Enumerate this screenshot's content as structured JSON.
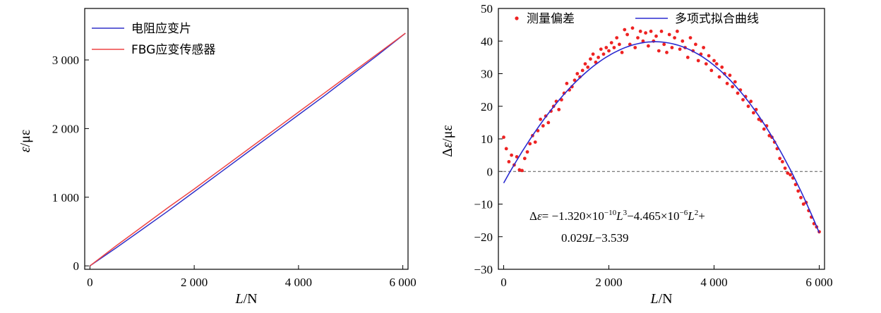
{
  "chart_data": [
    {
      "type": "line",
      "xlabel_italic": "L",
      "xlabel_unit": "/N",
      "ylabel_italic": "ε",
      "ylabel_unit": "/με",
      "xlim": [
        -100,
        6100
      ],
      "ylim": [
        -50,
        3750
      ],
      "xticks": [
        0,
        2000,
        4000,
        6000
      ],
      "xtick_labels": [
        "0",
        "2 000",
        "4 000",
        "6 000"
      ],
      "yticks": [
        0,
        1000,
        2000,
        3000
      ],
      "ytick_labels": [
        "0",
        "1 000",
        "2 000",
        "3 000"
      ],
      "legend_position": "top-left",
      "series": [
        {
          "name": "电阻应变片",
          "color": "#3030c8",
          "x": [
            0,
            500,
            1000,
            1500,
            2000,
            2500,
            3000,
            3500,
            4000,
            4500,
            5000,
            5500,
            6050
          ],
          "values": [
            0,
            260,
            530,
            800,
            1080,
            1360,
            1640,
            1920,
            2200,
            2480,
            2770,
            3060,
            3390
          ]
        },
        {
          "name": "FBG应变传感器",
          "color": "#ee4444",
          "x": [
            0,
            500,
            1000,
            1500,
            2000,
            2500,
            3000,
            3500,
            4000,
            4500,
            5000,
            5500,
            6050
          ],
          "values": [
            0,
            290,
            570,
            850,
            1120,
            1400,
            1680,
            1960,
            2240,
            2520,
            2800,
            3080,
            3390
          ]
        }
      ]
    },
    {
      "type": "scatter",
      "xlabel_italic": "L",
      "xlabel_unit": "/N",
      "ylabel_prefix": "Δ",
      "ylabel_italic": "ε",
      "ylabel_unit": "/με",
      "xlim": [
        -100,
        6100
      ],
      "ylim": [
        -30,
        50
      ],
      "xticks": [
        0,
        2000,
        4000,
        6000
      ],
      "xtick_labels": [
        "0",
        "2 000",
        "4 000",
        "6 000"
      ],
      "yticks": [
        -30,
        -20,
        -10,
        0,
        10,
        20,
        30,
        40,
        50
      ],
      "ytick_labels": [
        "−30",
        "−20",
        "−10",
        "0",
        "10",
        "20",
        "30",
        "40",
        "50"
      ],
      "zero_line": true,
      "legend_position": "top",
      "scatter_series": {
        "name": "测量偏差",
        "color": "#ee2222",
        "x": [
          0,
          50,
          100,
          150,
          200,
          250,
          300,
          350,
          400,
          450,
          500,
          550,
          600,
          650,
          700,
          750,
          800,
          850,
          900,
          950,
          1000,
          1050,
          1100,
          1150,
          1200,
          1250,
          1300,
          1350,
          1400,
          1450,
          1500,
          1550,
          1600,
          1650,
          1700,
          1750,
          1800,
          1850,
          1900,
          1950,
          2000,
          2050,
          2100,
          2150,
          2200,
          2250,
          2300,
          2350,
          2400,
          2450,
          2500,
          2550,
          2600,
          2650,
          2700,
          2750,
          2800,
          2850,
          2900,
          2950,
          3000,
          3050,
          3100,
          3150,
          3200,
          3250,
          3300,
          3350,
          3400,
          3450,
          3500,
          3550,
          3600,
          3650,
          3700,
          3750,
          3800,
          3850,
          3900,
          3950,
          4000,
          4050,
          4100,
          4150,
          4200,
          4250,
          4300,
          4350,
          4400,
          4450,
          4500,
          4550,
          4600,
          4650,
          4700,
          4750,
          4800,
          4850,
          4900,
          4950,
          5000,
          5050,
          5100,
          5150,
          5200,
          5250,
          5300,
          5350,
          5400,
          5450,
          5500,
          5550,
          5600,
          5650,
          5700,
          5750,
          5800,
          5850,
          5900,
          5950,
          6000
        ],
        "values": [
          10.5,
          7,
          3,
          5,
          2,
          4.5,
          0.5,
          0.3,
          4,
          6,
          8.5,
          11,
          9,
          12.5,
          16,
          14,
          17,
          15,
          18.5,
          20,
          21.5,
          19,
          22,
          24,
          27,
          25,
          26,
          28,
          30,
          29,
          31,
          33,
          32,
          34.5,
          36,
          33.5,
          35,
          37.5,
          36,
          38,
          37,
          39.5,
          38,
          41,
          39,
          36.5,
          43.5,
          42,
          39,
          44,
          38,
          41,
          43,
          40,
          42.5,
          38.5,
          43,
          40,
          41.5,
          37,
          43,
          39,
          36.5,
          42,
          38,
          41,
          43,
          37.5,
          40,
          38,
          35,
          41,
          37,
          39,
          34,
          36,
          38,
          33,
          35.5,
          31,
          34,
          33,
          29,
          32,
          30,
          27,
          29.5,
          26,
          27.5,
          24,
          25,
          22,
          23,
          20,
          21.5,
          18,
          19,
          16,
          15.5,
          13,
          14,
          11,
          10.5,
          9,
          7,
          4,
          3,
          1,
          -0.5,
          -1,
          -2,
          -4,
          -6,
          -8,
          -10,
          -9.5,
          -12,
          -14,
          -16,
          -17,
          -18.5
        ]
      },
      "fit_series": {
        "name": "多项式拟合曲线",
        "color": "#2a2ad0"
      },
      "equation": {
        "line1_prefix": "Δ",
        "line1_var": "ε",
        "line1_a": "= −1.320×10",
        "line1_exp_a": "−10",
        "line1_var2": "L",
        "line1_pow2": "3",
        "line1_b": "−4.465×10",
        "line1_exp_b": "−6",
        "line1_var3": "L",
        "line1_pow3": "2",
        "line1_end": "+",
        "line2_a": "0.029",
        "line2_var": "L",
        "line2_b": "−3.539"
      }
    }
  ]
}
